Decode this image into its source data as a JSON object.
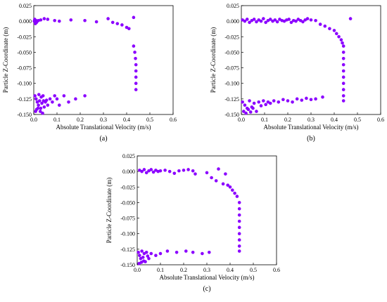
{
  "chart_data": [
    {
      "type": "scatter",
      "panel_label": "(a)",
      "xlabel": "Absolute Translational Velocity (m/s)",
      "ylabel": "Particle Z-Coordinate (m)",
      "xlim": [
        0.0,
        0.6
      ],
      "ylim": [
        -0.15,
        0.025
      ],
      "xticks": [
        "0.0",
        "0.1",
        "0.2",
        "0.3",
        "0.4",
        "0.5",
        "0.6"
      ],
      "yticks": [
        "0.025",
        "0.000",
        "-0.025",
        "-0.050",
        "-0.075",
        "-0.100",
        "-0.125",
        "-0.150"
      ],
      "marker_color": "#8B00FF",
      "points": [
        [
          0.002,
          0.0
        ],
        [
          0.005,
          0.002
        ],
        [
          0.008,
          -0.003
        ],
        [
          0.01,
          0.001
        ],
        [
          0.012,
          -0.002
        ],
        [
          0.004,
          0.003
        ],
        [
          0.007,
          -0.004
        ],
        [
          0.015,
          0.0
        ],
        [
          0.02,
          0.001
        ],
        [
          0.03,
          0.002
        ],
        [
          0.045,
          0.004
        ],
        [
          0.06,
          0.003
        ],
        [
          0.09,
          0.001
        ],
        [
          0.11,
          0.0
        ],
        [
          0.16,
          0.002
        ],
        [
          0.22,
          0.001
        ],
        [
          0.27,
          -0.001
        ],
        [
          0.32,
          0.004
        ],
        [
          0.34,
          -0.002
        ],
        [
          0.36,
          -0.004
        ],
        [
          0.38,
          -0.006
        ],
        [
          0.4,
          -0.01
        ],
        [
          0.41,
          -0.012
        ],
        [
          0.43,
          0.006
        ],
        [
          0.43,
          -0.04
        ],
        [
          0.435,
          -0.05
        ],
        [
          0.438,
          -0.06
        ],
        [
          0.44,
          -0.07
        ],
        [
          0.44,
          -0.08
        ],
        [
          0.44,
          -0.09
        ],
        [
          0.44,
          -0.1
        ],
        [
          0.44,
          -0.11
        ],
        [
          0.005,
          -0.12
        ],
        [
          0.01,
          -0.125
        ],
        [
          0.015,
          -0.13
        ],
        [
          0.02,
          -0.135
        ],
        [
          0.025,
          -0.128
        ],
        [
          0.03,
          -0.14
        ],
        [
          0.035,
          -0.132
        ],
        [
          0.04,
          -0.12
        ],
        [
          0.045,
          -0.138
        ],
        [
          0.05,
          -0.13
        ],
        [
          0.055,
          -0.127
        ],
        [
          0.06,
          -0.135
        ],
        [
          0.07,
          -0.125
        ],
        [
          0.08,
          -0.13
        ],
        [
          0.09,
          -0.12
        ],
        [
          0.1,
          -0.125
        ],
        [
          0.11,
          -0.135
        ],
        [
          0.13,
          -0.12
        ],
        [
          0.15,
          -0.13
        ],
        [
          0.18,
          -0.125
        ],
        [
          0.22,
          -0.12
        ],
        [
          0.008,
          -0.145
        ],
        [
          0.018,
          -0.14
        ],
        [
          0.028,
          -0.145
        ],
        [
          0.038,
          -0.148
        ],
        [
          0.012,
          -0.142
        ],
        [
          0.022,
          -0.118
        ],
        [
          0.032,
          -0.122
        ],
        [
          0.042,
          -0.128
        ]
      ]
    },
    {
      "type": "scatter",
      "panel_label": "(b)",
      "xlabel": "Absolute Translational Velocity (m/s)",
      "ylabel": "Particle Z-Coordinate (m)",
      "xlim": [
        0.0,
        0.6
      ],
      "ylim": [
        -0.15,
        0.025
      ],
      "xticks": [
        "0.0",
        "0.1",
        "0.2",
        "0.3",
        "0.4",
        "0.5",
        "0.6"
      ],
      "yticks": [
        "0.025",
        "0.000",
        "-0.025",
        "-0.050",
        "-0.075",
        "-0.100",
        "-0.125",
        "-0.150"
      ],
      "marker_color": "#8B00FF",
      "points": [
        [
          0.005,
          0.002
        ],
        [
          0.015,
          0.0
        ],
        [
          0.025,
          0.003
        ],
        [
          0.035,
          -0.002
        ],
        [
          0.045,
          0.001
        ],
        [
          0.055,
          0.003
        ],
        [
          0.065,
          -0.001
        ],
        [
          0.075,
          0.002
        ],
        [
          0.085,
          0.0
        ],
        [
          0.095,
          0.004
        ],
        [
          0.105,
          -0.002
        ],
        [
          0.115,
          0.001
        ],
        [
          0.125,
          0.003
        ],
        [
          0.135,
          0.0
        ],
        [
          0.145,
          0.002
        ],
        [
          0.155,
          -0.001
        ],
        [
          0.165,
          0.003
        ],
        [
          0.175,
          0.001
        ],
        [
          0.185,
          0.0
        ],
        [
          0.195,
          0.002
        ],
        [
          0.205,
          0.003
        ],
        [
          0.215,
          -0.002
        ],
        [
          0.225,
          0.001
        ],
        [
          0.235,
          0.0
        ],
        [
          0.245,
          0.003
        ],
        [
          0.255,
          0.001
        ],
        [
          0.265,
          -0.001
        ],
        [
          0.275,
          0.002
        ],
        [
          0.285,
          0.004
        ],
        [
          0.3,
          0.002
        ],
        [
          0.32,
          0.001
        ],
        [
          0.34,
          -0.005
        ],
        [
          0.36,
          -0.008
        ],
        [
          0.38,
          -0.012
        ],
        [
          0.4,
          -0.015
        ],
        [
          0.41,
          -0.02
        ],
        [
          0.42,
          -0.025
        ],
        [
          0.43,
          -0.03
        ],
        [
          0.435,
          -0.035
        ],
        [
          0.47,
          0.004
        ],
        [
          0.44,
          -0.04
        ],
        [
          0.44,
          -0.05
        ],
        [
          0.44,
          -0.06
        ],
        [
          0.44,
          -0.07
        ],
        [
          0.44,
          -0.08
        ],
        [
          0.44,
          -0.09
        ],
        [
          0.44,
          -0.1
        ],
        [
          0.44,
          -0.11
        ],
        [
          0.44,
          -0.12
        ],
        [
          0.44,
          -0.128
        ],
        [
          0.005,
          -0.13
        ],
        [
          0.015,
          -0.135
        ],
        [
          0.025,
          -0.14
        ],
        [
          0.035,
          -0.128
        ],
        [
          0.045,
          -0.138
        ],
        [
          0.055,
          -0.132
        ],
        [
          0.065,
          -0.145
        ],
        [
          0.075,
          -0.13
        ],
        [
          0.085,
          -0.136
        ],
        [
          0.095,
          -0.128
        ],
        [
          0.105,
          -0.134
        ],
        [
          0.115,
          -0.13
        ],
        [
          0.125,
          -0.132
        ],
        [
          0.14,
          -0.128
        ],
        [
          0.16,
          -0.13
        ],
        [
          0.18,
          -0.126
        ],
        [
          0.2,
          -0.128
        ],
        [
          0.22,
          -0.13
        ],
        [
          0.24,
          -0.125
        ],
        [
          0.26,
          -0.127
        ],
        [
          0.28,
          -0.124
        ],
        [
          0.3,
          -0.126
        ],
        [
          0.32,
          -0.125
        ],
        [
          0.35,
          -0.122
        ],
        [
          0.01,
          -0.145
        ],
        [
          0.02,
          -0.148
        ],
        [
          0.03,
          -0.142
        ],
        [
          0.04,
          -0.146
        ],
        [
          0.05,
          -0.14
        ]
      ]
    },
    {
      "type": "scatter",
      "panel_label": "(c)",
      "xlabel": "Absolute Translational Velocity (m/s)",
      "ylabel": "Particle Z-Coordinate (m)",
      "xlim": [
        0.0,
        0.6
      ],
      "ylim": [
        -0.15,
        0.025
      ],
      "xticks": [
        "0.0",
        "0.1",
        "0.2",
        "0.3",
        "0.4",
        "0.5",
        "0.6"
      ],
      "yticks": [
        "0.025",
        "0.000",
        "-0.025",
        "-0.050",
        "-0.075",
        "-0.100",
        "-0.125",
        "-0.150"
      ],
      "marker_color": "#8B00FF",
      "points": [
        [
          0.01,
          0.002
        ],
        [
          0.02,
          0.0
        ],
        [
          0.03,
          0.003
        ],
        [
          0.04,
          -0.002
        ],
        [
          0.05,
          0.001
        ],
        [
          0.06,
          0.003
        ],
        [
          0.07,
          -0.001
        ],
        [
          0.08,
          0.002
        ],
        [
          0.09,
          0.0
        ],
        [
          0.1,
          0.001
        ],
        [
          0.12,
          0.002
        ],
        [
          0.14,
          0.0
        ],
        [
          0.16,
          -0.003
        ],
        [
          0.18,
          0.001
        ],
        [
          0.2,
          0.002
        ],
        [
          0.22,
          0.003
        ],
        [
          0.24,
          0.001
        ],
        [
          0.25,
          -0.004
        ],
        [
          0.3,
          -0.002
        ],
        [
          0.32,
          -0.01
        ],
        [
          0.34,
          -0.015
        ],
        [
          0.35,
          0.004
        ],
        [
          0.37,
          -0.02
        ],
        [
          0.38,
          -0.004
        ],
        [
          0.39,
          -0.022
        ],
        [
          0.4,
          -0.025
        ],
        [
          0.41,
          -0.03
        ],
        [
          0.42,
          -0.035
        ],
        [
          0.43,
          -0.04
        ],
        [
          0.44,
          -0.05
        ],
        [
          0.44,
          -0.06
        ],
        [
          0.44,
          -0.07
        ],
        [
          0.44,
          -0.08
        ],
        [
          0.44,
          -0.09
        ],
        [
          0.44,
          -0.1
        ],
        [
          0.44,
          -0.11
        ],
        [
          0.44,
          -0.12
        ],
        [
          0.44,
          -0.128
        ],
        [
          0.005,
          -0.13
        ],
        [
          0.01,
          -0.135
        ],
        [
          0.015,
          -0.14
        ],
        [
          0.02,
          -0.128
        ],
        [
          0.025,
          -0.138
        ],
        [
          0.03,
          -0.132
        ],
        [
          0.035,
          -0.145
        ],
        [
          0.04,
          -0.13
        ],
        [
          0.045,
          -0.136
        ],
        [
          0.05,
          -0.14
        ],
        [
          0.06,
          -0.132
        ],
        [
          0.08,
          -0.135
        ],
        [
          0.1,
          -0.132
        ],
        [
          0.13,
          -0.128
        ],
        [
          0.17,
          -0.13
        ],
        [
          0.21,
          -0.128
        ],
        [
          0.24,
          -0.13
        ],
        [
          0.28,
          -0.132
        ],
        [
          0.31,
          -0.13
        ],
        [
          0.008,
          -0.148
        ],
        [
          0.018,
          -0.146
        ],
        [
          0.028,
          -0.144
        ]
      ]
    }
  ]
}
